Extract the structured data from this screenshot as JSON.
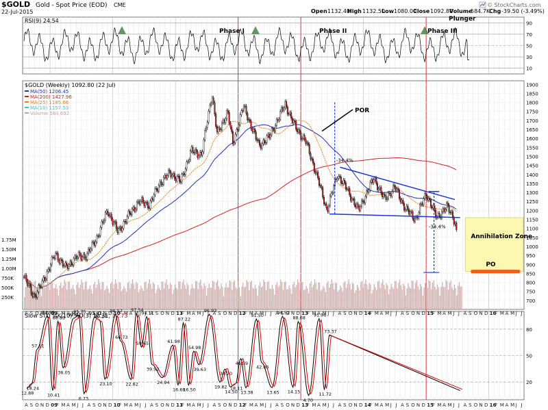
{
  "header": {
    "symbol": "$GOLD",
    "description": "Gold - Spot Price (EOD)",
    "exchange": "CME",
    "date": "22-Jul-2015",
    "open_label": "Open",
    "open": "1132.40",
    "high_label": "High",
    "high": "1132.50",
    "low_label": "Low",
    "low": "1080.00",
    "close_label": "Close",
    "close": "1092.80",
    "volume_label": "Volume",
    "volume": "584.7K",
    "chg_label": "Chg",
    "chg": "-39.50 (-3.49%)",
    "watermark": "© StockCharts.com",
    "watermark_icon": "stockcharts-logo-icon"
  },
  "colors": {
    "candle": "#000000",
    "ma50": "#1e2fb0",
    "ma200": "#d02020",
    "ma25": "#e0801a",
    "ma10": "#40c0c0",
    "volume": "#c8a0a0",
    "rsi": "#000000",
    "rsi_fill": "#3e7a3e",
    "sto_k": "#000000",
    "sto_d": "#e00000",
    "trend": "#1a34d4",
    "phase_line": "#e03030",
    "zone_fill": "#fbf6b0",
    "po_bar": "#f06010"
  },
  "chart_data": [
    {
      "type": "line",
      "title": "RSI(9) 24.54",
      "y_ticks": [
        10,
        30,
        50,
        70,
        90
      ],
      "ylim": [
        0,
        100
      ],
      "series": [
        {
          "name": "RSI(9)",
          "last": 24.54
        }
      ],
      "annotations": [
        "Phase I",
        "Phase II",
        "Phase III",
        "Plunger"
      ]
    },
    {
      "type": "candlestick",
      "title": "$GOLD (Weekly) 1092.80 (22 Jul)",
      "ylim": [
        650,
        1920
      ],
      "y_ticks": [
        700,
        750,
        800,
        850,
        900,
        950,
        1000,
        1050,
        1100,
        1150,
        1200,
        1250,
        1300,
        1350,
        1400,
        1450,
        1500,
        1550,
        1600,
        1650,
        1700,
        1750,
        1800,
        1850,
        1900
      ],
      "legend": [
        {
          "label": "MA(50)",
          "value": "1206.45",
          "color_key": "ma50"
        },
        {
          "label": "MA(200)",
          "value": "1427.96",
          "color_key": "ma200"
        },
        {
          "label": "MA(25)",
          "value": "1185.66",
          "color_key": "ma25"
        },
        {
          "label": "MA(10)",
          "value": "1157.53",
          "color_key": "ma10"
        },
        {
          "label": "Volume",
          "value": "584,692",
          "color_key": "volume"
        }
      ],
      "price_points": [
        {
          "date": "2008-08",
          "close": 830
        },
        {
          "date": "2008-10",
          "close": 720
        },
        {
          "date": "2008-11",
          "close": 770
        },
        {
          "date": "2009-01",
          "close": 890
        },
        {
          "date": "2009-02",
          "close": 960
        },
        {
          "date": "2009-04",
          "close": 880
        },
        {
          "date": "2009-06",
          "close": 940
        },
        {
          "date": "2009-08",
          "close": 950
        },
        {
          "date": "2009-10",
          "close": 1050
        },
        {
          "date": "2009-12",
          "close": 1200
        },
        {
          "date": "2010-02",
          "close": 1080
        },
        {
          "date": "2010-04",
          "close": 1170
        },
        {
          "date": "2010-06",
          "close": 1250
        },
        {
          "date": "2010-08",
          "close": 1230
        },
        {
          "date": "2010-10",
          "close": 1350
        },
        {
          "date": "2010-12",
          "close": 1410
        },
        {
          "date": "2011-02",
          "close": 1360
        },
        {
          "date": "2011-04",
          "close": 1530
        },
        {
          "date": "2011-06",
          "close": 1510
        },
        {
          "date": "2011-08",
          "close": 1850
        },
        {
          "date": "2011-09",
          "close": 1620
        },
        {
          "date": "2011-11",
          "close": 1750
        },
        {
          "date": "2011-12",
          "close": 1570
        },
        {
          "date": "2012-02",
          "close": 1780
        },
        {
          "date": "2012-05",
          "close": 1560
        },
        {
          "date": "2012-07",
          "close": 1610
        },
        {
          "date": "2012-10",
          "close": 1790
        },
        {
          "date": "2012-12",
          "close": 1660
        },
        {
          "date": "2013-02",
          "close": 1580
        },
        {
          "date": "2013-04",
          "close": 1400
        },
        {
          "date": "2013-06",
          "close": 1200
        },
        {
          "date": "2013-08",
          "close": 1400
        },
        {
          "date": "2013-10",
          "close": 1310
        },
        {
          "date": "2013-12",
          "close": 1200
        },
        {
          "date": "2014-03",
          "close": 1380
        },
        {
          "date": "2014-05",
          "close": 1260
        },
        {
          "date": "2014-07",
          "close": 1330
        },
        {
          "date": "2014-09",
          "close": 1210
        },
        {
          "date": "2014-11",
          "close": 1150
        },
        {
          "date": "2015-01",
          "close": 1295
        },
        {
          "date": "2015-03",
          "close": 1160
        },
        {
          "date": "2015-05",
          "close": 1220
        },
        {
          "date": "2015-06",
          "close": 1175
        },
        {
          "date": "2015-07",
          "close": 1092.8
        }
      ],
      "volume_axis_ticks": [
        "250K",
        "500K",
        "750K",
        "1.00M",
        "1.25M",
        "1.50M",
        "1.75M"
      ],
      "annotations": {
        "por": "POR",
        "pct_top": "-34.4%",
        "pct_bottom": "-34.4%",
        "zone": "Annihilation Zone",
        "po": "PO"
      }
    },
    {
      "type": "line",
      "title": "Slow STO %K(10) %D(3) 10.31, 12.73",
      "title_prefix": "Slow STO %K(10) %D(3) 10.31,",
      "title_value": "12.73",
      "y_ticks": [
        20,
        50,
        80
      ],
      "ylim": [
        0,
        100
      ],
      "labels": [
        {
          "date": "2008-08",
          "value": "12.88"
        },
        {
          "date": "2008-09",
          "value": "18.24"
        },
        {
          "date": "2008-10",
          "value": "57.11"
        },
        {
          "date": "2008-12",
          "value": "94.98"
        },
        {
          "date": "2009-01",
          "value": "10.41"
        },
        {
          "date": "2009-02",
          "value": "88.89"
        },
        {
          "date": "2009-03",
          "value": "36.05"
        },
        {
          "date": "2009-05",
          "value": "92.42"
        },
        {
          "date": "2009-06",
          "value": "95.75"
        },
        {
          "date": "2009-07",
          "value": "6.73"
        },
        {
          "date": "2009-09",
          "value": "93.81"
        },
        {
          "date": "2009-10",
          "value": "90.24"
        },
        {
          "date": "2009-11",
          "value": "23.10"
        },
        {
          "date": "2010-01",
          "value": "96.57"
        },
        {
          "date": "2010-02",
          "value": "66.73"
        },
        {
          "date": "2010-04",
          "value": "22.82"
        },
        {
          "date": "2010-05",
          "value": "97.54"
        },
        {
          "date": "2010-06",
          "value": "59.65"
        },
        {
          "date": "2010-07",
          "value": "94.11"
        },
        {
          "date": "2010-08",
          "value": "39.92"
        },
        {
          "date": "2010-10",
          "value": "24.94"
        },
        {
          "date": "2010-12",
          "value": "61.98"
        },
        {
          "date": "2011-01",
          "value": "16.68"
        },
        {
          "date": "2011-02",
          "value": "87.22"
        },
        {
          "date": "2011-03",
          "value": "16.50"
        },
        {
          "date": "2011-04",
          "value": "54.98"
        },
        {
          "date": "2011-05",
          "value": "39.63"
        },
        {
          "date": "2011-07",
          "value": "96.93"
        },
        {
          "date": "2011-09",
          "value": "19.82"
        },
        {
          "date": "2011-10",
          "value": "34.70"
        },
        {
          "date": "2011-11",
          "value": "14.50"
        },
        {
          "date": "2011-12",
          "value": "18.11"
        },
        {
          "date": "2012-01",
          "value": "46.59"
        },
        {
          "date": "2012-02",
          "value": "13.38"
        },
        {
          "date": "2012-04",
          "value": "91.50"
        },
        {
          "date": "2012-05",
          "value": "42.06"
        },
        {
          "date": "2012-07",
          "value": "13.65"
        },
        {
          "date": "2012-09",
          "value": "94.52"
        },
        {
          "date": "2012-11",
          "value": "14.15"
        },
        {
          "date": "2012-12",
          "value": "88.68"
        },
        {
          "date": "2013-02",
          "value": "4.70"
        },
        {
          "date": "2013-04",
          "value": "91.96"
        },
        {
          "date": "2013-05",
          "value": "11.72"
        },
        {
          "date": "2013-06",
          "value": "73.37"
        }
      ]
    }
  ],
  "x_axis": {
    "labels": [
      "A",
      "S",
      "O",
      "N",
      "D",
      "09",
      "F",
      "M",
      "A",
      "M",
      "J",
      "J",
      "A",
      "S",
      "O",
      "N",
      "D",
      "10",
      "F",
      "M",
      "A",
      "M",
      "J",
      "J",
      "A",
      "S",
      "O",
      "N",
      "D",
      "11",
      "F",
      "M",
      "A",
      "M",
      "J",
      "J",
      "A",
      "S",
      "O",
      "N",
      "D",
      "12",
      "F",
      "M",
      "A",
      "M",
      "J",
      "J",
      "A",
      "S",
      "O",
      "N",
      "D",
      "13",
      "F",
      "M",
      "A",
      "M",
      "J",
      "J",
      "A",
      "S",
      "O",
      "N",
      "D",
      "14",
      "F",
      "M",
      "A",
      "M",
      "J",
      "J",
      "A",
      "S",
      "O",
      "N",
      "D",
      "15",
      "F",
      "M",
      "A",
      "M",
      "J",
      "J",
      "A",
      "S",
      "O",
      "N",
      "D",
      "16",
      "F",
      "M",
      "A",
      "M",
      "J",
      "J"
    ],
    "year_labels": [
      "09",
      "10",
      "11",
      "12",
      "13",
      "14",
      "15",
      "16"
    ]
  }
}
